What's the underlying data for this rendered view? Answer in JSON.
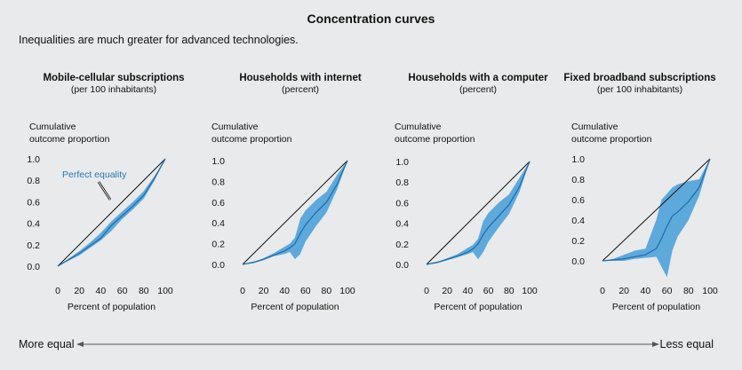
{
  "title": "Concentration curves",
  "subtitle": "Inequalities are much greater for advanced technologies.",
  "footer": {
    "left_label": "More equal",
    "right_label": "Less equal"
  },
  "colors": {
    "band": "#5ea9dc",
    "curve": "#1f6fae",
    "equality": "#111111",
    "annotation": "#1f78b8"
  },
  "chart_data": [
    {
      "type": "area",
      "title": "Mobile-cellular subscriptions",
      "subtitle": "(per 100 inhabitants)",
      "ylabel": "Cumulative outcome proportion",
      "xlabel": "Percent of population",
      "annotation": "Perfect equality",
      "x_ticks": [
        0,
        20,
        40,
        60,
        80,
        100
      ],
      "y_ticks": [
        "0.0",
        "0.2",
        "0.4",
        "0.6",
        "0.8",
        "1.0"
      ],
      "xlim": [
        0,
        100
      ],
      "ylim": [
        0,
        1
      ],
      "x": [
        0,
        10,
        20,
        30,
        40,
        50,
        60,
        70,
        80,
        90,
        100
      ],
      "median": [
        0,
        0.06,
        0.12,
        0.19,
        0.26,
        0.38,
        0.47,
        0.56,
        0.66,
        0.82,
        1.0
      ],
      "upper": [
        0,
        0.07,
        0.14,
        0.22,
        0.31,
        0.42,
        0.51,
        0.6,
        0.7,
        0.84,
        1.0
      ],
      "lower": [
        0,
        0.05,
        0.1,
        0.17,
        0.24,
        0.33,
        0.44,
        0.53,
        0.63,
        0.8,
        1.0
      ]
    },
    {
      "type": "area",
      "title": "Households with internet",
      "subtitle": "(percent)",
      "ylabel": "Cumulative outcome proportion",
      "xlabel": "Percent of population",
      "x_ticks": [
        0,
        20,
        40,
        60,
        80,
        100
      ],
      "y_ticks": [
        "0.0",
        "0.2",
        "0.4",
        "0.6",
        "0.8",
        "1.0"
      ],
      "xlim": [
        0,
        100
      ],
      "ylim": [
        0,
        1
      ],
      "x": [
        0,
        10,
        20,
        30,
        40,
        45,
        50,
        55,
        60,
        70,
        80,
        90,
        100
      ],
      "median": [
        0,
        0.02,
        0.05,
        0.09,
        0.13,
        0.16,
        0.2,
        0.3,
        0.38,
        0.5,
        0.6,
        0.77,
        1.0
      ],
      "upper": [
        0,
        0.02,
        0.06,
        0.11,
        0.17,
        0.2,
        0.26,
        0.44,
        0.52,
        0.62,
        0.7,
        0.86,
        1.0
      ],
      "lower": [
        0,
        0.01,
        0.04,
        0.08,
        0.1,
        0.12,
        0.05,
        0.1,
        0.22,
        0.37,
        0.5,
        0.72,
        1.0
      ]
    },
    {
      "type": "area",
      "title": "Households with a computer",
      "subtitle": "(percent)",
      "ylabel": "Cumulative outcome proportion",
      "xlabel": "Percent of population",
      "x_ticks": [
        0,
        20,
        40,
        60,
        80,
        100
      ],
      "y_ticks": [
        "0.0",
        "0.2",
        "0.4",
        "0.6",
        "0.8",
        "1.0"
      ],
      "xlim": [
        0,
        100
      ],
      "ylim": [
        0,
        1
      ],
      "x": [
        0,
        10,
        20,
        30,
        40,
        45,
        50,
        55,
        60,
        70,
        80,
        90,
        100
      ],
      "median": [
        0,
        0.02,
        0.05,
        0.08,
        0.12,
        0.15,
        0.2,
        0.29,
        0.36,
        0.47,
        0.58,
        0.75,
        1.0
      ],
      "upper": [
        0,
        0.02,
        0.06,
        0.1,
        0.16,
        0.19,
        0.25,
        0.42,
        0.5,
        0.6,
        0.68,
        0.84,
        1.0
      ],
      "lower": [
        0,
        0.01,
        0.04,
        0.07,
        0.1,
        0.12,
        0.05,
        0.12,
        0.22,
        0.36,
        0.49,
        0.7,
        1.0
      ]
    },
    {
      "type": "area",
      "title": "Fixed broadband subscriptions",
      "subtitle": "(per 100 inhabitants)",
      "ylabel": "Cumulative outcome proportion",
      "xlabel": "Percent of population",
      "x_ticks": [
        0,
        20,
        40,
        60,
        80,
        100
      ],
      "y_ticks": [
        "0.0",
        "0.2",
        "0.4",
        "0.6",
        "0.8",
        "1.0"
      ],
      "xlim": [
        0,
        100
      ],
      "ylim": [
        -0.1,
        1
      ],
      "x": [
        0,
        10,
        20,
        30,
        40,
        50,
        55,
        60,
        65,
        70,
        80,
        90,
        100
      ],
      "median": [
        0,
        0.01,
        0.02,
        0.04,
        0.06,
        0.12,
        0.22,
        0.34,
        0.44,
        0.48,
        0.58,
        0.72,
        1.0
      ],
      "upper": [
        0,
        0.02,
        0.06,
        0.1,
        0.12,
        0.4,
        0.6,
        0.66,
        0.72,
        0.75,
        0.78,
        0.8,
        1.0
      ],
      "lower": [
        0,
        0.0,
        0.0,
        0.02,
        0.03,
        0.04,
        -0.06,
        -0.16,
        0.1,
        0.24,
        0.4,
        0.64,
        1.0
      ]
    }
  ]
}
